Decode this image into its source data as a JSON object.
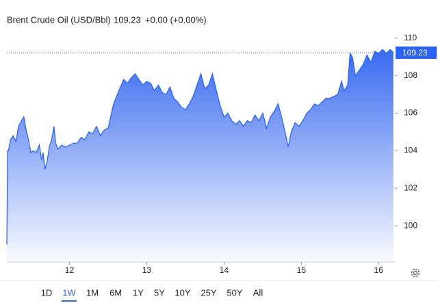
{
  "chart_data": {
    "type": "area",
    "title": "Brent Crude Oil (USD/Bbl)",
    "change": "+0.00 (+0.00%)",
    "last_price": {
      "value": 109.23,
      "label": "109.23"
    },
    "line_color": "#2962ff",
    "price_color": "#2962ff",
    "change_color": "#22ab3c",
    "xlim": [
      11.19,
      16.21
    ],
    "xticks": [
      12,
      13,
      14,
      15,
      16
    ],
    "ylim": [
      98.07,
      110.58
    ],
    "yticks": [
      100,
      102,
      104,
      106,
      108,
      110
    ],
    "x": [
      11.19,
      11.2,
      11.21,
      11.24,
      11.27,
      11.31,
      11.34,
      11.38,
      11.41,
      11.44,
      11.47,
      11.5,
      11.53,
      11.57,
      11.61,
      11.64,
      11.66,
      11.68,
      11.71,
      11.74,
      11.77,
      11.8,
      11.82,
      11.85,
      11.9,
      11.95,
      12.0,
      12.05,
      12.1,
      12.15,
      12.2,
      12.25,
      12.3,
      12.35,
      12.4,
      12.45,
      12.5,
      12.57,
      12.6,
      12.65,
      12.7,
      12.75,
      12.8,
      12.85,
      12.9,
      12.95,
      13.0,
      13.05,
      13.1,
      13.15,
      13.2,
      13.25,
      13.3,
      13.35,
      13.4,
      13.45,
      13.5,
      13.55,
      13.6,
      13.65,
      13.7,
      13.75,
      13.8,
      13.85,
      13.9,
      13.95,
      14.0,
      14.05,
      14.1,
      14.15,
      14.2,
      14.25,
      14.3,
      14.35,
      14.4,
      14.45,
      14.5,
      14.55,
      14.6,
      14.65,
      14.7,
      14.75,
      14.8,
      14.83,
      14.87,
      14.92,
      14.97,
      15.02,
      15.07,
      15.12,
      15.17,
      15.22,
      15.27,
      15.32,
      15.37,
      15.42,
      15.47,
      15.52,
      15.55,
      15.6,
      15.63,
      15.66,
      15.7,
      15.75,
      15.8,
      15.85,
      15.9,
      15.95,
      16.0,
      16.05,
      16.1,
      16.15,
      16.19
    ],
    "values": [
      99.0,
      104.0,
      104.0,
      104.6,
      104.8,
      104.5,
      105.3,
      105.6,
      105.8,
      105.1,
      104.6,
      103.9,
      104.0,
      103.9,
      104.3,
      103.5,
      103.9,
      103.0,
      103.4,
      104.2,
      104.6,
      105.3,
      104.4,
      104.1,
      104.3,
      104.2,
      104.3,
      104.4,
      104.4,
      104.7,
      104.6,
      105.0,
      104.9,
      105.3,
      104.8,
      105.1,
      105.2,
      106.5,
      106.8,
      107.3,
      107.8,
      107.6,
      107.9,
      108.1,
      107.8,
      107.5,
      107.7,
      107.6,
      107.2,
      107.5,
      107.1,
      107.0,
      107.4,
      106.8,
      106.6,
      106.3,
      106.2,
      106.5,
      106.9,
      107.5,
      108.1,
      107.3,
      107.5,
      108.1,
      107.2,
      106.4,
      105.8,
      106.0,
      105.6,
      105.4,
      105.6,
      105.3,
      105.6,
      105.5,
      105.9,
      105.6,
      106.0,
      105.2,
      105.8,
      106.1,
      106.5,
      105.7,
      104.8,
      104.2,
      105.0,
      105.5,
      105.3,
      105.6,
      106.0,
      106.2,
      106.5,
      106.4,
      106.6,
      106.8,
      106.8,
      106.9,
      107.0,
      107.7,
      107.2,
      107.5,
      109.2,
      109.0,
      108.0,
      108.3,
      108.6,
      109.1,
      108.7,
      109.3,
      109.2,
      109.4,
      109.2,
      109.4,
      109.23
    ],
    "range_buttons": [
      "1D",
      "1W",
      "1M",
      "6M",
      "1Y",
      "5Y",
      "10Y",
      "25Y",
      "50Y",
      "All"
    ],
    "selected_range": "1W"
  }
}
